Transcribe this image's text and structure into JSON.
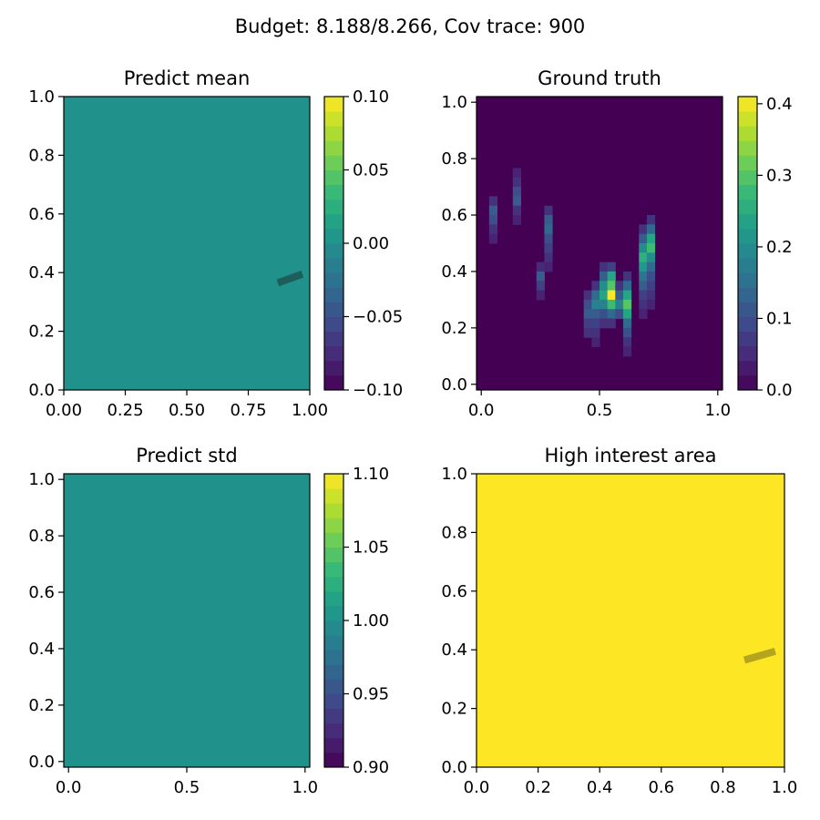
{
  "suptitle": "Budget: 8.188/8.266,  Cov trace: 900",
  "colors": {
    "viridis": [
      "#440154",
      "#482878",
      "#3e4989",
      "#31688e",
      "#26828e",
      "#1f9e89",
      "#35b779",
      "#6ece58",
      "#b5de2b",
      "#fde725"
    ],
    "flat_mid": "#21918c",
    "flat_top": "#fde725",
    "path_dark": "#1e5e5a",
    "path_olive": "#b5a51e"
  },
  "chart_data": [
    {
      "id": "mean",
      "type": "heatmap",
      "title": "Predict mean",
      "uniform_value": 0.0,
      "xlim": [
        0,
        1
      ],
      "ylim": [
        0,
        1
      ],
      "xticks": [
        "0.00",
        "0.25",
        "0.50",
        "0.75",
        "1.00"
      ],
      "yticks": [
        "0.0",
        "0.2",
        "0.4",
        "0.6",
        "0.8",
        "1.0"
      ],
      "cbar_range": [
        -0.1,
        0.1
      ],
      "cbar_ticks": [
        "−0.10",
        "−0.05",
        "0.00",
        "0.05",
        "0.10"
      ],
      "path": [
        [
          0.87,
          0.365
        ],
        [
          0.97,
          0.395
        ]
      ]
    },
    {
      "id": "truth",
      "type": "heatmap",
      "title": "Ground truth",
      "xlim": [
        -0.02,
        1.02
      ],
      "ylim": [
        -0.02,
        1.02
      ],
      "xticks": [
        "0.0",
        "0.5",
        "1.0"
      ],
      "yticks": [
        "0.0",
        "0.2",
        "0.4",
        "0.6",
        "0.8",
        "1.0"
      ],
      "cbar_range": [
        0,
        0.41
      ],
      "cbar_ticks": [
        "0.0",
        "0.1",
        "0.2",
        "0.3",
        "0.4"
      ],
      "grid_n": 30,
      "blobs": [
        {
          "col": 1,
          "row_start": 10,
          "values": [
            0.06,
            0.12,
            0.1,
            0.06,
            0.04
          ]
        },
        {
          "col": 4,
          "row_start": 7,
          "values": [
            0.04,
            0.06,
            0.1,
            0.12,
            0.06,
            0.04
          ]
        },
        {
          "col": 7,
          "row_start": 17,
          "values": [
            0.05,
            0.12,
            0.08,
            0.04
          ]
        },
        {
          "col": 8,
          "row_start": 11,
          "values": [
            0.06,
            0.12,
            0.14,
            0.1,
            0.08,
            0.06,
            0.04
          ]
        },
        {
          "col": 13,
          "row_start": 20,
          "values": [
            0.06,
            0.1,
            0.12,
            0.08,
            0.06
          ]
        },
        {
          "col": 14,
          "row_start": 19,
          "values": [
            0.06,
            0.14,
            0.18,
            0.12,
            0.08,
            0.06,
            0.04
          ]
        },
        {
          "col": 15,
          "row_start": 17,
          "values": [
            0.06,
            0.12,
            0.2,
            0.24,
            0.18,
            0.1,
            0.06
          ]
        },
        {
          "col": 16,
          "row_start": 17,
          "values": [
            0.08,
            0.24,
            0.3,
            0.41,
            0.28,
            0.14,
            0.06
          ]
        },
        {
          "col": 17,
          "row_start": 19,
          "values": [
            0.06,
            0.12,
            0.18,
            0.1
          ]
        },
        {
          "col": 18,
          "row_start": 18,
          "values": [
            0.06,
            0.14,
            0.24,
            0.3,
            0.24,
            0.14,
            0.1,
            0.06,
            0.04
          ]
        },
        {
          "col": 20,
          "row_start": 13,
          "values": [
            0.06,
            0.12,
            0.2,
            0.26,
            0.22,
            0.16,
            0.12,
            0.08,
            0.06,
            0.04
          ]
        },
        {
          "col": 21,
          "row_start": 12,
          "values": [
            0.06,
            0.14,
            0.24,
            0.28,
            0.2,
            0.14,
            0.1,
            0.08,
            0.06,
            0.04
          ]
        }
      ]
    },
    {
      "id": "std",
      "type": "heatmap",
      "title": "Predict std",
      "uniform_value": 1.0,
      "xlim": [
        -0.02,
        1.02
      ],
      "ylim": [
        -0.02,
        1.02
      ],
      "xticks": [
        "0.0",
        "0.5",
        "1.0"
      ],
      "yticks": [
        "0.0",
        "0.2",
        "0.4",
        "0.6",
        "0.8",
        "1.0"
      ],
      "cbar_range": [
        0.9,
        1.1
      ],
      "cbar_ticks": [
        "0.90",
        "0.95",
        "1.00",
        "1.05",
        "1.10"
      ]
    },
    {
      "id": "interest",
      "type": "heatmap",
      "title": "High interest area",
      "uniform_value": 1,
      "xlim": [
        0,
        1
      ],
      "ylim": [
        0,
        1
      ],
      "xticks": [
        "0.0",
        "0.2",
        "0.4",
        "0.6",
        "0.8",
        "1.0"
      ],
      "yticks": [
        "0.0",
        "0.2",
        "0.4",
        "0.6",
        "0.8",
        "1.0"
      ],
      "path": [
        [
          0.87,
          0.365
        ],
        [
          0.97,
          0.395
        ]
      ]
    }
  ]
}
